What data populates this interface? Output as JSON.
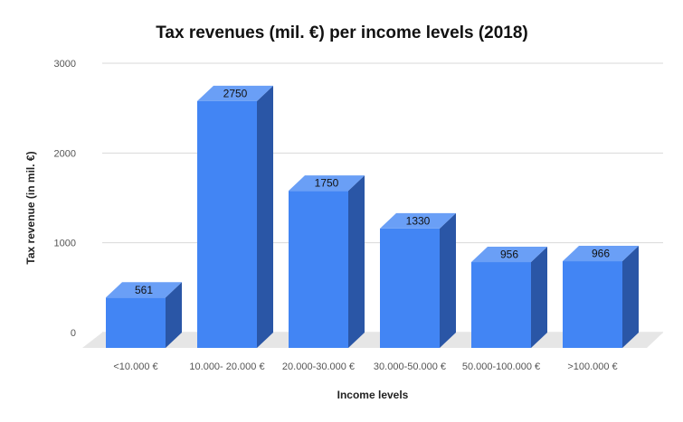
{
  "chart_data": {
    "type": "bar",
    "title": "Tax revenues (mil. €) per income levels (2018)",
    "xlabel": "Income levels",
    "ylabel": "Tax revenue (in mil. €)",
    "categories": [
      "<10.000 €",
      "10.000- 20.000 €",
      "20.000-30.000 €",
      "30.000-50.000 €",
      "50.000-100.000 €",
      ">100.000 €"
    ],
    "values": [
      561,
      2750,
      1750,
      1330,
      956,
      966
    ],
    "data_labels": [
      "561",
      "2750",
      "1750",
      "1330",
      "956",
      "966"
    ],
    "yticks": [
      "0",
      "1000",
      "2000",
      "3000"
    ],
    "ylim": [
      0,
      3000
    ],
    "grid": true,
    "legend": "none",
    "style": "3d",
    "colors": {
      "bar_front": "#4285f4",
      "bar_top": "#6a9ff6",
      "bar_side": "#2a56a6",
      "floor": "#e6e6e6",
      "grid": "#d9d9d9"
    }
  }
}
